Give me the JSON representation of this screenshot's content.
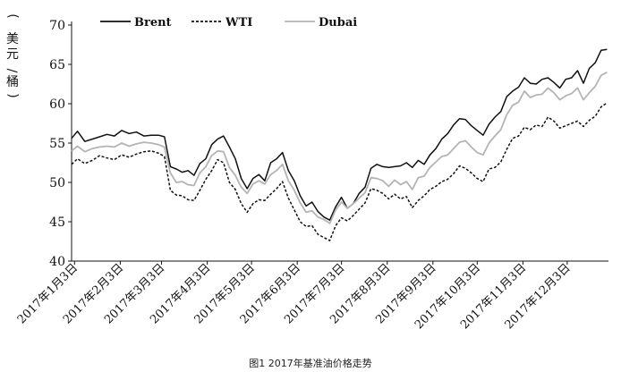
{
  "caption": "图1 2017年基准油价格走势",
  "chart_data": {
    "type": "line",
    "ylabel_lines": [
      "美元",
      "/",
      "桶"
    ],
    "ylim": [
      40,
      70
    ],
    "yticks": [
      40,
      45,
      50,
      55,
      60,
      65,
      70
    ],
    "xlim": [
      1,
      365
    ],
    "xticks": [
      {
        "label": "2017年1月3日",
        "day": 3
      },
      {
        "label": "2017年2月3日",
        "day": 34
      },
      {
        "label": "2017年3月3日",
        "day": 62
      },
      {
        "label": "2017年4月3日",
        "day": 93
      },
      {
        "label": "2017年5月3日",
        "day": 123
      },
      {
        "label": "2017年6月3日",
        "day": 154
      },
      {
        "label": "2017年7月3日",
        "day": 184
      },
      {
        "label": "2017年8月3日",
        "day": 215
      },
      {
        "label": "2017年9月3日",
        "day": 246
      },
      {
        "label": "2017年10月3日",
        "day": 276
      },
      {
        "label": "2017年11月3日",
        "day": 307
      },
      {
        "label": "2017年12月3日",
        "day": 337
      }
    ],
    "legend_position": "top",
    "series": [
      {
        "name": "Brent",
        "color": "#111111",
        "style": "solid",
        "x": [
          1,
          5,
          10,
          15,
          20,
          25,
          30,
          35,
          40,
          45,
          50,
          55,
          60,
          64,
          68,
          72,
          76,
          80,
          84,
          88,
          92,
          96,
          100,
          104,
          108,
          112,
          116,
          120,
          124,
          128,
          132,
          136,
          140,
          144,
          148,
          152,
          156,
          160,
          164,
          168,
          172,
          176,
          180,
          184,
          188,
          192,
          196,
          200,
          204,
          208,
          212,
          216,
          220,
          224,
          228,
          232,
          236,
          240,
          244,
          248,
          252,
          256,
          260,
          264,
          268,
          272,
          276,
          280,
          284,
          288,
          292,
          296,
          300,
          304,
          308,
          312,
          316,
          320,
          324,
          328,
          332,
          336,
          340,
          344,
          348,
          352,
          356,
          360,
          364
        ],
        "values": [
          55.6,
          56.5,
          55.2,
          55.5,
          55.8,
          56.1,
          55.9,
          56.6,
          56.2,
          56.4,
          55.9,
          56.0,
          56.0,
          55.8,
          52.0,
          51.7,
          51.3,
          51.5,
          50.9,
          52.4,
          53.0,
          54.8,
          55.5,
          55.9,
          54.5,
          53.0,
          50.5,
          49.2,
          50.5,
          51.0,
          50.2,
          52.5,
          53.0,
          53.8,
          51.5,
          50.2,
          48.3,
          47.0,
          47.5,
          46.3,
          45.6,
          45.2,
          46.9,
          48.1,
          46.7,
          47.3,
          48.6,
          49.4,
          51.8,
          52.3,
          52.0,
          51.9,
          52.0,
          52.1,
          52.5,
          51.9,
          52.8,
          52.3,
          53.5,
          54.3,
          55.5,
          56.2,
          57.3,
          58.1,
          58.0,
          57.2,
          56.6,
          56.0,
          57.4,
          58.3,
          59.0,
          60.9,
          61.6,
          62.1,
          63.3,
          62.6,
          62.5,
          63.1,
          63.3,
          62.7,
          62.0,
          63.1,
          63.3,
          64.2,
          62.6,
          64.5,
          65.2,
          66.8,
          66.9
        ]
      },
      {
        "name": "WTI",
        "color": "#111111",
        "style": "dashed",
        "x": [
          1,
          5,
          10,
          15,
          20,
          25,
          30,
          35,
          40,
          45,
          50,
          55,
          60,
          64,
          68,
          72,
          76,
          80,
          84,
          88,
          92,
          96,
          100,
          104,
          108,
          112,
          116,
          120,
          124,
          128,
          132,
          136,
          140,
          144,
          148,
          152,
          156,
          160,
          164,
          168,
          172,
          176,
          180,
          184,
          188,
          192,
          196,
          200,
          204,
          208,
          212,
          216,
          220,
          224,
          228,
          232,
          236,
          240,
          244,
          248,
          252,
          256,
          260,
          264,
          268,
          272,
          276,
          280,
          284,
          288,
          292,
          296,
          300,
          304,
          308,
          312,
          316,
          320,
          324,
          328,
          332,
          336,
          340,
          344,
          348,
          352,
          356,
          360,
          364
        ],
        "values": [
          52.3,
          53.0,
          52.4,
          52.8,
          53.4,
          53.1,
          52.9,
          53.5,
          53.2,
          53.6,
          53.9,
          54.0,
          53.7,
          53.3,
          49.0,
          48.4,
          48.3,
          47.8,
          47.7,
          49.0,
          50.4,
          51.5,
          52.9,
          52.5,
          50.0,
          49.1,
          47.3,
          46.2,
          47.3,
          47.8,
          47.7,
          48.5,
          49.2,
          50.1,
          48.0,
          46.5,
          45.0,
          44.4,
          44.5,
          43.4,
          43.0,
          42.6,
          44.5,
          45.5,
          45.1,
          45.8,
          46.6,
          47.4,
          49.2,
          49.0,
          48.6,
          47.9,
          48.5,
          47.9,
          48.2,
          46.8,
          47.7,
          48.3,
          49.1,
          49.5,
          50.1,
          50.4,
          51.1,
          52.1,
          51.8,
          51.2,
          50.5,
          50.1,
          51.7,
          51.9,
          52.6,
          54.2,
          55.6,
          55.9,
          57.0,
          56.7,
          57.3,
          57.1,
          58.3,
          57.8,
          56.9,
          57.2,
          57.5,
          57.8,
          57.1,
          57.9,
          58.4,
          59.6,
          60.1
        ]
      },
      {
        "name": "Dubai",
        "color": "#b4b4b4",
        "style": "solid",
        "x": [
          1,
          5,
          10,
          15,
          20,
          25,
          30,
          35,
          40,
          45,
          50,
          55,
          60,
          64,
          68,
          72,
          76,
          80,
          84,
          88,
          92,
          96,
          100,
          104,
          108,
          112,
          116,
          120,
          124,
          128,
          132,
          136,
          140,
          144,
          148,
          152,
          156,
          160,
          164,
          168,
          172,
          176,
          180,
          184,
          188,
          192,
          196,
          200,
          204,
          208,
          212,
          216,
          220,
          224,
          228,
          232,
          236,
          240,
          244,
          248,
          252,
          256,
          260,
          264,
          268,
          272,
          276,
          280,
          284,
          288,
          292,
          296,
          300,
          304,
          308,
          312,
          316,
          320,
          324,
          328,
          332,
          336,
          340,
          344,
          348,
          352,
          356,
          360,
          364
        ],
        "values": [
          54.0,
          54.6,
          53.9,
          54.3,
          54.5,
          54.6,
          54.5,
          55.0,
          54.6,
          54.9,
          55.1,
          55.0,
          54.8,
          54.5,
          51.2,
          50.0,
          50.1,
          49.7,
          49.6,
          51.2,
          52.0,
          53.4,
          54.0,
          53.9,
          51.9,
          50.9,
          49.4,
          48.6,
          49.8,
          50.2,
          49.8,
          51.0,
          51.5,
          52.3,
          50.2,
          49.0,
          47.4,
          46.2,
          46.4,
          45.6,
          45.3,
          44.8,
          46.5,
          47.5,
          46.7,
          47.3,
          48.0,
          48.7,
          50.6,
          50.5,
          50.2,
          49.5,
          50.3,
          49.7,
          50.1,
          49.1,
          50.6,
          50.8,
          51.9,
          52.6,
          53.3,
          53.5,
          54.3,
          55.1,
          55.3,
          54.5,
          53.8,
          53.5,
          55.0,
          55.9,
          56.7,
          58.6,
          59.8,
          60.2,
          61.6,
          60.8,
          61.1,
          61.2,
          62.0,
          61.4,
          60.5,
          61.0,
          61.3,
          62.0,
          60.5,
          61.4,
          62.2,
          63.6,
          64.0
        ]
      }
    ]
  }
}
